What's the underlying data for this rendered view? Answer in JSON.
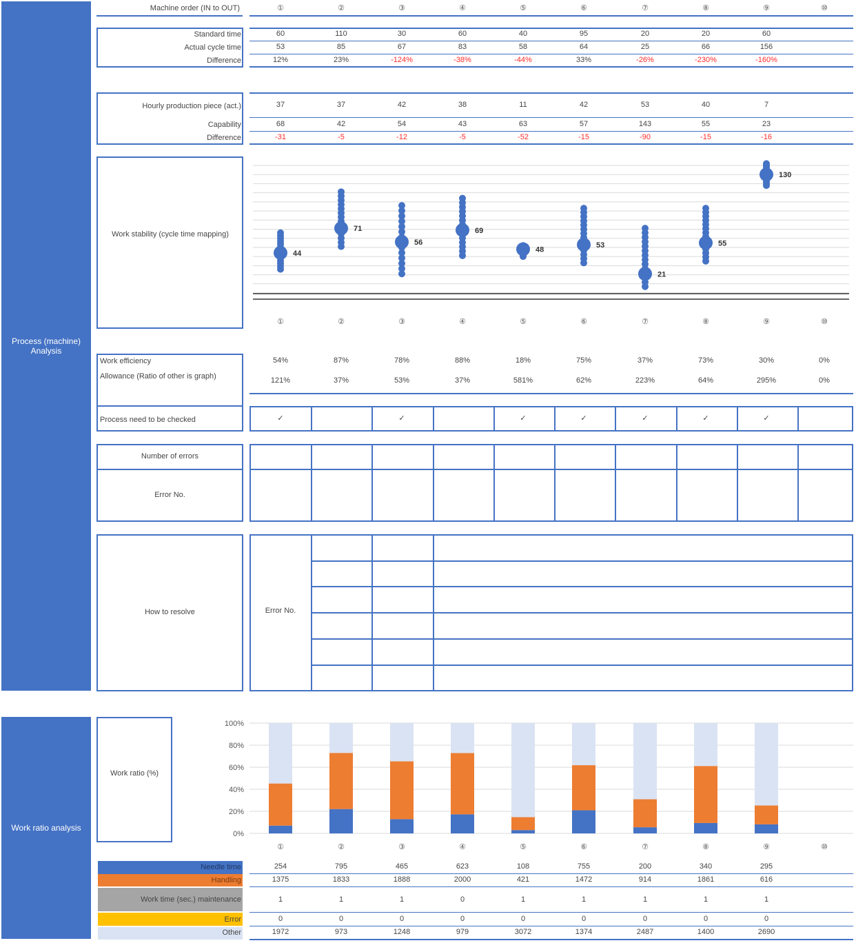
{
  "sections": {
    "process": "Process (machine) Analysis",
    "work_ratio": "Work ratio analysis"
  },
  "machine_order_label": "Machine order (IN to OUT)",
  "machines": [
    "①",
    "②",
    "③",
    "④",
    "⑤",
    "⑥",
    "⑦",
    "⑧",
    "⑨",
    "⑩"
  ],
  "cycle": {
    "labels": {
      "standard": "Standard time",
      "actual": "Actual cycle time",
      "difference": "Difference"
    },
    "standard": [
      "60",
      "110",
      "30",
      "60",
      "40",
      "95",
      "20",
      "20",
      "60",
      ""
    ],
    "actual": [
      "53",
      "85",
      "67",
      "83",
      "58",
      "64",
      "25",
      "66",
      "156",
      ""
    ],
    "difference": [
      "12%",
      "23%",
      "-124%",
      "-38%",
      "-44%",
      "33%",
      "-26%",
      "-230%",
      "-160%",
      ""
    ]
  },
  "production": {
    "labels": {
      "hourly": "Hourly production piece (act.)",
      "capability": "Capability",
      "difference": "Difference"
    },
    "hourly": [
      "37",
      "37",
      "42",
      "38",
      "11",
      "42",
      "53",
      "40",
      "7",
      ""
    ],
    "capability": [
      "68",
      "42",
      "54",
      "43",
      "63",
      "57",
      "143",
      "55",
      "23",
      ""
    ],
    "difference": [
      "-31",
      "-5",
      "-12",
      "-5",
      "-52",
      "-15",
      "-90",
      "-15",
      "-16",
      ""
    ]
  },
  "stability": {
    "label": "Work stability (cycle time mapping)",
    "means": [
      44,
      71,
      56,
      69,
      48,
      53,
      21,
      55,
      130
    ]
  },
  "efficiency": {
    "labels": {
      "efficiency": "Work efficiency",
      "allowance": "Allowance (Ratio of other is graph)"
    },
    "efficiency": [
      "54%",
      "87%",
      "78%",
      "88%",
      "18%",
      "75%",
      "37%",
      "73%",
      "30%",
      "0%"
    ],
    "allowance": [
      "121%",
      "37%",
      "53%",
      "37%",
      "581%",
      "62%",
      "223%",
      "64%",
      "295%",
      "0%"
    ]
  },
  "check": {
    "label": "Process need to be checked",
    "marks": [
      "✓",
      "",
      "✓",
      "",
      "✓",
      "✓",
      "✓",
      "✓",
      "✓",
      ""
    ]
  },
  "errors": {
    "count_label": "Number of errors",
    "no_label": "Error No."
  },
  "resolve": {
    "label": "How to resolve",
    "error_no_label": "Error No."
  },
  "work_ratio_label": "Work ratio (%)",
  "chart_data": {
    "type": "bar",
    "stacked": true,
    "categories": [
      "①",
      "②",
      "③",
      "④",
      "⑤",
      "⑥",
      "⑦",
      "⑧",
      "⑨",
      "⑩"
    ],
    "yticks": [
      "100%",
      "80%",
      "60%",
      "40%",
      "20%",
      "0%"
    ],
    "series": [
      {
        "name": "Needle time",
        "color": "#4472c4",
        "values": [
          254,
          795,
          465,
          623,
          108,
          755,
          200,
          340,
          295,
          0
        ]
      },
      {
        "name": "Handling",
        "color": "#ed7d31",
        "values": [
          1375,
          1833,
          1888,
          2000,
          421,
          1472,
          914,
          1861,
          616,
          0
        ]
      },
      {
        "name": "Work time (sec.) maintenance",
        "color": "#a5a5a5",
        "values": [
          1,
          1,
          1,
          0,
          1,
          1,
          1,
          1,
          1,
          0
        ]
      },
      {
        "name": "Error",
        "color": "#ffc000",
        "values": [
          0,
          0,
          0,
          0,
          0,
          0,
          0,
          0,
          0,
          0
        ]
      },
      {
        "name": "Other",
        "color": "#dae3f3",
        "values": [
          1972,
          973,
          1248,
          979,
          3072,
          1374,
          2487,
          1400,
          2690,
          0
        ]
      }
    ]
  },
  "legend_rows": {
    "needle": {
      "label": "Needle time",
      "values": [
        "254",
        "795",
        "465",
        "623",
        "108",
        "755",
        "200",
        "340",
        "295",
        ""
      ]
    },
    "handling": {
      "label": "Handling",
      "values": [
        "1375",
        "1833",
        "1888",
        "2000",
        "421",
        "1472",
        "914",
        "1861",
        "616",
        ""
      ]
    },
    "maintenance": {
      "label": "Work time (sec.) maintenance",
      "values": [
        "1",
        "1",
        "1",
        "0",
        "1",
        "1",
        "1",
        "1",
        "1",
        ""
      ]
    },
    "error": {
      "label": "Error",
      "values": [
        "0",
        "0",
        "0",
        "0",
        "0",
        "0",
        "0",
        "0",
        "0",
        ""
      ]
    },
    "other": {
      "label": "Other",
      "values": [
        "1972",
        "973",
        "1248",
        "979",
        "3072",
        "1374",
        "2487",
        "1400",
        "2690",
        ""
      ]
    }
  }
}
